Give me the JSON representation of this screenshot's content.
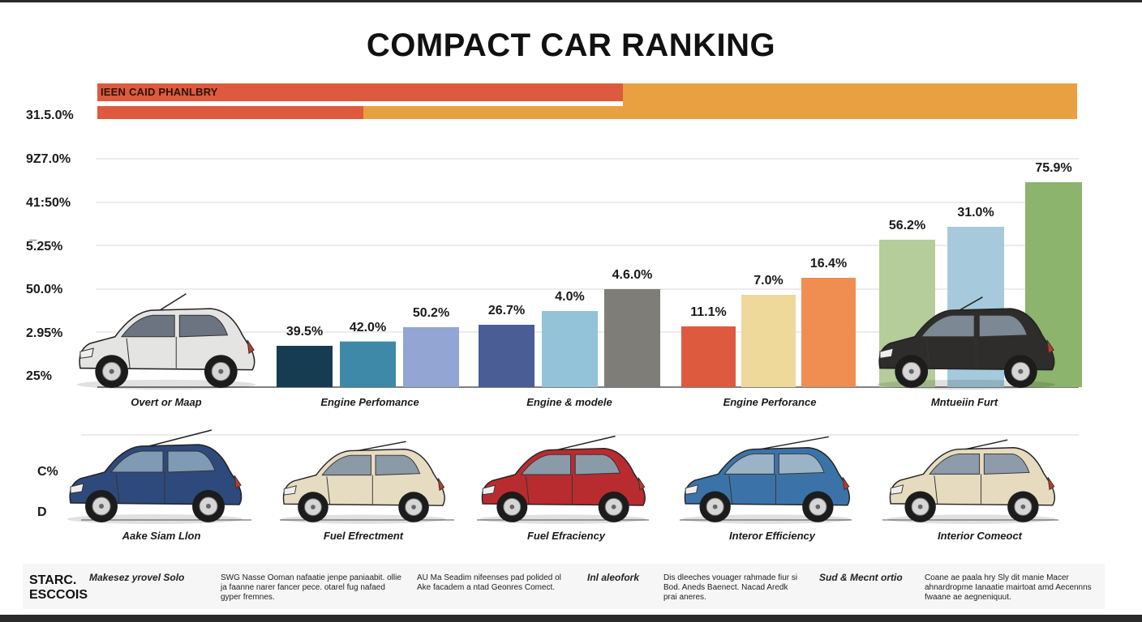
{
  "chart_data": {
    "type": "bar",
    "title": "COMPACT CAR RANKING",
    "banner_label": "IEEN CAID PHANLBRY",
    "y_tick_labels": [
      "31.5.0%",
      "9Z7.0%",
      "41:50%",
      "5̅.25%",
      "50.0%",
      "2.95%",
      "25%"
    ],
    "groups": [
      {
        "category": "Overt or Maap",
        "values": [],
        "labels": []
      },
      {
        "category": "Engine Perfomance",
        "values": [
          39.5,
          42.0,
          50.2
        ],
        "labels": [
          "39.5%",
          "42.0%",
          "50.2%"
        ]
      },
      {
        "category": "Engine & modele",
        "values": [
          26.7,
          4.0,
          4.6
        ],
        "labels": [
          "26.7%",
          "4.0%",
          "4.6.0%"
        ]
      },
      {
        "category": "Engine Perforance",
        "values": [
          11.1,
          7.0,
          16.4
        ],
        "labels": [
          "11.1%",
          "7.0%",
          "16.4%"
        ]
      },
      {
        "category": "Mntueiin Furt",
        "values": [
          56.2,
          31.0,
          75.9
        ],
        "labels": [
          "56.2%",
          "31.0%",
          "75.9%"
        ]
      }
    ],
    "colors": {
      "banner_red": "#dd5a3e",
      "banner_orange": "#e8a040",
      "group1": [
        "#163c52",
        "#3f89a8",
        "#93a6d3"
      ],
      "group2": [
        "#4a5e95",
        "#93c3d8",
        "#7f7d78"
      ],
      "group3": [
        "#dd5a3e",
        "#eed89a",
        "#ef8e50"
      ],
      "group4": [
        "#b5cd9a",
        "#a6cadb",
        "#8cb46c"
      ]
    },
    "lower_y_labels": [
      "C%",
      "D"
    ],
    "lower_categories": [
      "Aake Siam Llon",
      "Fuel Efrectment",
      "Fuel Efraciency",
      "Interor Efficiency",
      "Interior Comeoct"
    ]
  },
  "icons": [
    "car-silver",
    "car-black",
    "car-navy",
    "car-beige",
    "car-red",
    "car-blue",
    "car-cream"
  ],
  "footer": {
    "brand_line1": "STARC.",
    "brand_line2": "ESCCOIS",
    "heading1": "Makesez yrovel Solo",
    "col1": "SWG Nasse Ooman nafaatie jenpe paniaabit. ollie ja faanne narer fancer pece. otarel fug nafaed gyper fremnes.",
    "col2": "AU Ma Seadim nifeenses pad polided ol Ake facadem a ntad Geonres Comect.",
    "heading2": "Inl aleofork",
    "col3": "Dis dleeches vouager rahmade fiur si Bod. Aneds Baenect. Nacad Aredk prai aneres.",
    "heading3": "Sud & Mecnt ortio",
    "col4": "Coane ae paala hry Sly dit manie Macer ahnardropme Ianaatie mairtoat amd Aecennns fwaane ae aegneniquut."
  }
}
